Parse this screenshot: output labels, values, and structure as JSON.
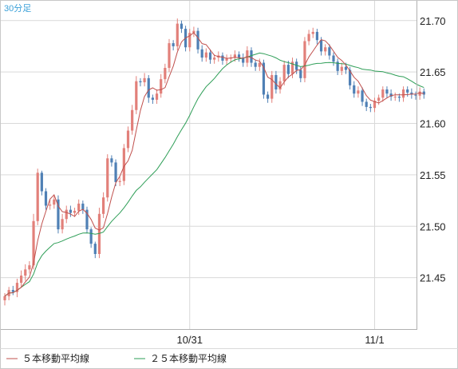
{
  "chart_data": {
    "type": "candlestick",
    "period_label": "30分足",
    "ylim": [
      21.4,
      21.72
    ],
    "y_ticks": [
      "21.70",
      "21.65",
      "21.60",
      "21.55",
      "21.50",
      "21.45"
    ],
    "y_tick_values": [
      21.7,
      21.65,
      21.6,
      21.55,
      21.5,
      21.45
    ],
    "x_ticks": [
      "10/31",
      "11/1"
    ],
    "x_tick_bar_index": [
      45,
      90
    ],
    "grid": true,
    "legend_position": "bottom-left",
    "legend": [
      {
        "label": "５本移動平均線",
        "color": "#c0504d"
      },
      {
        "label": "２５本移動平均線",
        "color": "#2e9e57"
      }
    ],
    "colors": {
      "up": "#e2807a",
      "down": "#4f80b5",
      "ma5": "#c0504d",
      "ma25": "#2e9e57"
    },
    "candles": {
      "open": [
        21.428,
        21.432,
        21.438,
        21.436,
        21.445,
        21.452,
        21.458,
        21.462,
        21.505,
        21.552,
        21.534,
        21.52,
        21.521,
        21.526,
        21.497,
        21.507,
        21.516,
        21.513,
        21.515,
        21.522,
        21.516,
        21.497,
        21.483,
        21.473,
        21.512,
        21.528,
        21.566,
        21.562,
        21.543,
        21.544,
        21.576,
        21.593,
        21.613,
        21.641,
        21.64,
        21.644,
        21.625,
        21.623,
        21.629,
        21.643,
        21.654,
        21.678,
        21.675,
        21.697,
        21.692,
        21.674,
        21.688,
        21.69,
        21.672,
        21.664,
        21.669,
        21.662,
        21.664,
        21.666,
        21.661,
        21.663,
        21.664,
        21.667,
        21.664,
        21.659,
        21.671,
        21.659,
        21.655,
        21.659,
        21.628,
        21.624,
        21.647,
        21.633,
        21.641,
        21.657,
        21.648,
        21.66,
        21.652,
        21.644,
        21.68,
        21.687,
        21.689,
        21.681,
        21.67,
        21.674,
        21.666,
        21.66,
        21.651,
        21.655,
        21.652,
        21.637,
        21.629,
        21.632,
        21.621,
        21.616,
        21.615,
        21.622,
        21.625,
        21.633,
        21.629,
        21.626,
        21.626,
        21.625,
        21.633,
        21.63,
        21.628,
        21.627,
        21.631
      ],
      "close": [
        21.432,
        21.438,
        21.436,
        21.445,
        21.452,
        21.458,
        21.462,
        21.505,
        21.552,
        21.534,
        21.52,
        21.521,
        21.526,
        21.497,
        21.507,
        21.516,
        21.513,
        21.515,
        21.522,
        21.516,
        21.497,
        21.483,
        21.473,
        21.512,
        21.528,
        21.566,
        21.562,
        21.543,
        21.544,
        21.576,
        21.593,
        21.613,
        21.641,
        21.64,
        21.644,
        21.625,
        21.623,
        21.629,
        21.643,
        21.654,
        21.678,
        21.675,
        21.697,
        21.692,
        21.674,
        21.688,
        21.69,
        21.672,
        21.664,
        21.669,
        21.662,
        21.664,
        21.666,
        21.661,
        21.663,
        21.664,
        21.667,
        21.664,
        21.659,
        21.671,
        21.659,
        21.655,
        21.659,
        21.628,
        21.624,
        21.647,
        21.633,
        21.641,
        21.657,
        21.648,
        21.66,
        21.652,
        21.644,
        21.68,
        21.687,
        21.689,
        21.681,
        21.67,
        21.674,
        21.666,
        21.66,
        21.651,
        21.655,
        21.652,
        21.637,
        21.629,
        21.632,
        21.621,
        21.616,
        21.615,
        21.622,
        21.625,
        21.633,
        21.629,
        21.626,
        21.626,
        21.625,
        21.633,
        21.63,
        21.628,
        21.627,
        21.631,
        21.628
      ],
      "high": [
        21.435,
        21.441,
        21.442,
        21.449,
        21.457,
        21.463,
        21.466,
        21.512,
        21.556,
        21.554,
        21.537,
        21.526,
        21.53,
        21.53,
        21.512,
        21.52,
        21.52,
        21.518,
        21.526,
        21.525,
        21.519,
        21.499,
        21.485,
        21.518,
        21.533,
        21.57,
        21.569,
        21.565,
        21.548,
        21.58,
        21.597,
        21.618,
        21.646,
        21.644,
        21.649,
        21.647,
        21.628,
        21.633,
        21.648,
        21.658,
        21.682,
        21.681,
        21.702,
        21.7,
        21.695,
        21.692,
        21.694,
        21.693,
        21.676,
        21.673,
        21.672,
        21.667,
        21.67,
        21.669,
        21.667,
        21.667,
        21.671,
        21.67,
        21.668,
        21.675,
        21.674,
        21.662,
        21.663,
        21.662,
        21.631,
        21.651,
        21.651,
        21.645,
        21.661,
        21.661,
        21.664,
        21.663,
        21.655,
        21.684,
        21.691,
        21.693,
        21.692,
        21.684,
        21.677,
        21.677,
        21.669,
        21.663,
        21.659,
        21.659,
        21.655,
        21.641,
        21.636,
        21.635,
        21.624,
        21.619,
        21.625,
        21.628,
        21.636,
        21.636,
        21.633,
        21.63,
        21.629,
        21.636,
        21.636,
        21.634,
        21.631,
        21.635,
        21.634
      ],
      "low": [
        21.423,
        21.428,
        21.433,
        21.431,
        21.441,
        21.447,
        21.454,
        21.458,
        21.501,
        21.53,
        21.516,
        21.516,
        21.517,
        21.493,
        21.493,
        21.503,
        21.509,
        21.509,
        21.511,
        21.512,
        21.493,
        21.479,
        21.469,
        21.469,
        21.508,
        21.524,
        21.558,
        21.539,
        21.539,
        21.54,
        21.572,
        21.589,
        21.609,
        21.636,
        21.636,
        21.62,
        21.619,
        21.619,
        21.625,
        21.639,
        21.65,
        21.671,
        21.671,
        21.688,
        21.67,
        21.67,
        21.684,
        21.668,
        21.66,
        21.66,
        21.658,
        21.658,
        21.66,
        21.657,
        21.657,
        21.659,
        21.66,
        21.66,
        21.655,
        21.655,
        21.655,
        21.651,
        21.651,
        21.624,
        21.62,
        21.62,
        21.629,
        21.629,
        21.637,
        21.644,
        21.644,
        21.648,
        21.64,
        21.64,
        21.676,
        21.683,
        21.677,
        21.666,
        21.666,
        21.662,
        21.656,
        21.647,
        21.647,
        21.648,
        21.633,
        21.625,
        21.625,
        21.617,
        21.612,
        21.611,
        21.611,
        21.618,
        21.621,
        21.625,
        21.622,
        21.622,
        21.621,
        21.621,
        21.626,
        21.624,
        21.623,
        21.623,
        21.624
      ]
    }
  }
}
